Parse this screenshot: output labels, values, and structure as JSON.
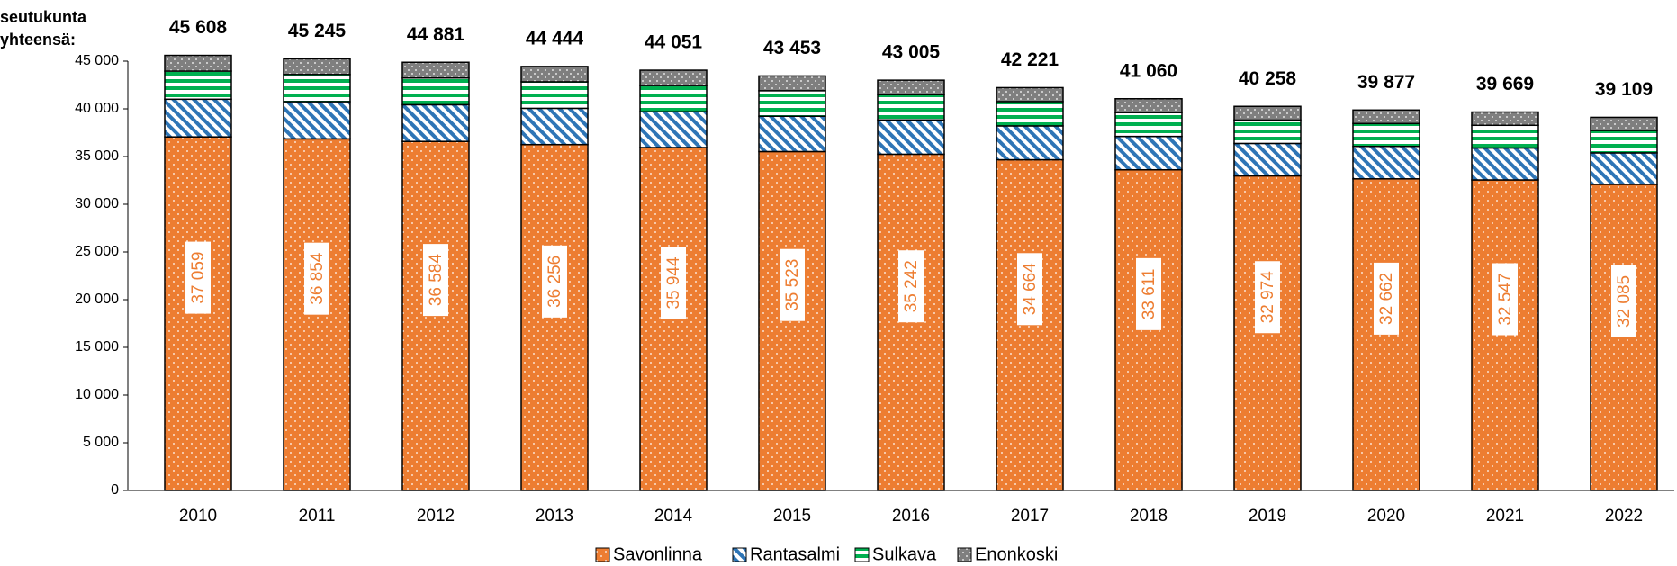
{
  "chart_data": {
    "type": "stacked_bar",
    "y_label": [
      "seutukunta",
      "yhteensä:"
    ],
    "categories": [
      "2010",
      "2011",
      "2012",
      "2013",
      "2014",
      "2015",
      "2016",
      "2017",
      "2018",
      "2019",
      "2020",
      "2021",
      "2022"
    ],
    "series": [
      {
        "name": "Savonlinna",
        "color": "#ed7d31",
        "values": [
          37059,
          36854,
          36584,
          36256,
          35944,
          35523,
          35242,
          34664,
          33611,
          32974,
          32662,
          32547,
          32085
        ],
        "value_labels": [
          "37 059",
          "36 854",
          "36 584",
          "36 256",
          "35 944",
          "35 523",
          "35 242",
          "34 664",
          "33 611",
          "32 974",
          "32 662",
          "32 547",
          "32 085"
        ]
      },
      {
        "name": "Rantasalmi",
        "color": "#2e75b6",
        "values": [
          3950,
          3900,
          3850,
          3800,
          3750,
          3700,
          3600,
          3550,
          3500,
          3400,
          3400,
          3350,
          3300
        ]
      },
      {
        "name": "Sulkava",
        "color": "#00b050",
        "values": [
          2950,
          2850,
          2800,
          2780,
          2750,
          2680,
          2650,
          2550,
          2500,
          2450,
          2400,
          2380,
          2350
        ]
      },
      {
        "name": "Enonkoski",
        "color": "#7f7f7f",
        "values": [
          1649,
          1641,
          1647,
          1608,
          1607,
          1550,
          1513,
          1457,
          1449,
          1434,
          1415,
          1392,
          1374
        ]
      }
    ],
    "totals": [
      45608,
      45245,
      44881,
      44444,
      44051,
      43453,
      43005,
      42221,
      41060,
      40258,
      39877,
      39669,
      39109
    ],
    "total_labels": [
      "45 608",
      "45 245",
      "44 881",
      "44 444",
      "44 051",
      "43 453",
      "43 005",
      "42 221",
      "41 060",
      "40 258",
      "39 877",
      "39 669",
      "39 109"
    ],
    "ylim": [
      0,
      45000
    ],
    "yticks": [
      0,
      {
        "value": 5000,
        "label": "5 000"
      },
      {
        "value": 10000,
        "label": "10 000"
      },
      {
        "value": 15000,
        "label": "15 000"
      },
      {
        "value": 20000,
        "label": "20 000"
      },
      {
        "value": 25000,
        "label": "25 000"
      },
      {
        "value": 30000,
        "label": "30 000"
      },
      {
        "value": 35000,
        "label": "35 000"
      },
      {
        "value": 40000,
        "label": "40 000"
      },
      {
        "value": 45000,
        "label": "45 000"
      }
    ],
    "legend": "bottom"
  }
}
